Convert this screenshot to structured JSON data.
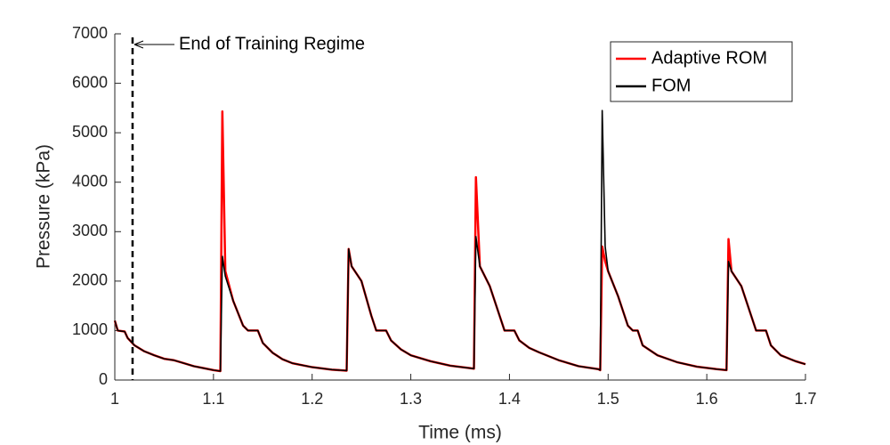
{
  "chart_data": {
    "type": "line",
    "xlabel": "Time (ms)",
    "ylabel": "Pressure (kPa)",
    "annotation": {
      "text": "End of Training Regime",
      "x": 1.018
    },
    "x": [
      1.0,
      1.003,
      1.01,
      1.013,
      1.02,
      1.03,
      1.04,
      1.05,
      1.06,
      1.07,
      1.08,
      1.09,
      1.1,
      1.107,
      1.109,
      1.112,
      1.12,
      1.13,
      1.135,
      1.145,
      1.15,
      1.16,
      1.17,
      1.18,
      1.2,
      1.22,
      1.235,
      1.237,
      1.24,
      1.25,
      1.26,
      1.265,
      1.275,
      1.28,
      1.29,
      1.3,
      1.32,
      1.34,
      1.36,
      1.364,
      1.366,
      1.37,
      1.38,
      1.39,
      1.395,
      1.405,
      1.41,
      1.42,
      1.43,
      1.45,
      1.47,
      1.49,
      1.492,
      1.494,
      1.497,
      1.5,
      1.51,
      1.52,
      1.525,
      1.53,
      1.535,
      1.55,
      1.57,
      1.59,
      1.61,
      1.62,
      1.622,
      1.625,
      1.635,
      1.645,
      1.65,
      1.66,
      1.665,
      1.675,
      1.69,
      1.7
    ],
    "series": [
      {
        "name": "Adaptive ROM",
        "color": "#ff0000",
        "values": [
          1200,
          1000,
          980,
          850,
          700,
          580,
          500,
          430,
          400,
          340,
          280,
          240,
          200,
          180,
          5430,
          2200,
          1600,
          1100,
          1000,
          1000,
          750,
          550,
          420,
          340,
          260,
          210,
          190,
          2650,
          2300,
          2000,
          1300,
          1000,
          1000,
          800,
          620,
          500,
          380,
          290,
          240,
          230,
          4100,
          2300,
          1900,
          1300,
          1000,
          1000,
          800,
          650,
          560,
          400,
          280,
          220,
          200,
          2700,
          2400,
          2200,
          1700,
          1100,
          1000,
          1000,
          700,
          500,
          360,
          270,
          220,
          200,
          2850,
          2200,
          1900,
          1300,
          1000,
          1000,
          700,
          500,
          380,
          320
        ]
      },
      {
        "name": "FOM",
        "color": "#000000",
        "values": [
          1200,
          1000,
          980,
          850,
          700,
          580,
          500,
          430,
          400,
          340,
          280,
          240,
          200,
          180,
          2500,
          2100,
          1600,
          1100,
          1000,
          1000,
          750,
          550,
          420,
          340,
          260,
          210,
          190,
          2650,
          2300,
          2000,
          1300,
          1000,
          1000,
          800,
          620,
          500,
          380,
          290,
          240,
          230,
          2900,
          2300,
          1900,
          1300,
          1000,
          1000,
          800,
          650,
          560,
          400,
          280,
          220,
          200,
          5450,
          2700,
          2200,
          1700,
          1100,
          1000,
          1000,
          700,
          500,
          360,
          270,
          220,
          200,
          2400,
          2200,
          1900,
          1300,
          1000,
          1000,
          700,
          500,
          380,
          320
        ]
      }
    ],
    "xlim": [
      1,
      1.7
    ],
    "xticks": [
      1,
      1.1,
      1.2,
      1.3,
      1.4,
      1.5,
      1.6,
      1.7
    ],
    "ylim": [
      0,
      7000
    ],
    "yticks": [
      0,
      1000,
      2000,
      3000,
      4000,
      5000,
      6000,
      7000
    ],
    "grid": false,
    "legend": "top-right"
  }
}
